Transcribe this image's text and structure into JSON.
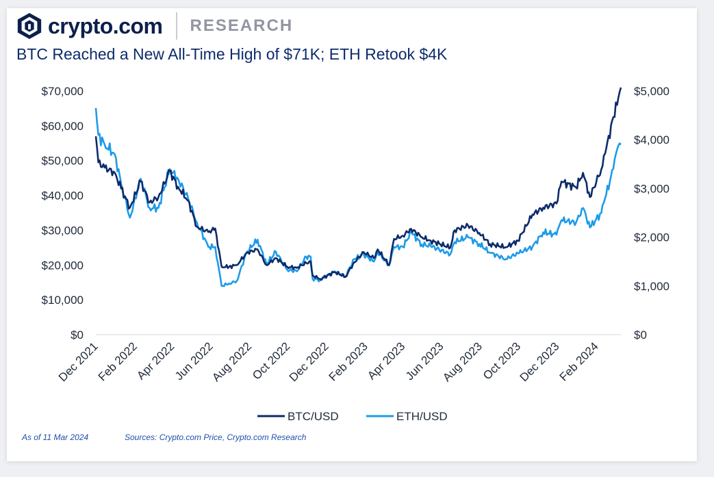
{
  "brand": {
    "name": "crypto.com",
    "section": "RESEARCH"
  },
  "title": "BTC Reached a New All-Time High of $71K; ETH Retook $4K",
  "footer": {
    "as_of": "As of 11 Mar 2024",
    "sources": "Sources: Crypto.com Price, Crypto.com Research"
  },
  "colors": {
    "btc": "#0d2b6b",
    "eth": "#1e9be9",
    "brand": "#0d1f4c"
  },
  "chart_data": {
    "type": "line",
    "title": "BTC Reached a New All-Time High of $71K; ETH Retook $4K",
    "x_start": "2021-12-01",
    "x_end": "2024-03-11",
    "x_tick_labels": [
      "Dec 2021",
      "Feb 2022",
      "Apr 2022",
      "Jun 2022",
      "Aug 2022",
      "Oct 2022",
      "Dec 2022",
      "Feb 2023",
      "Apr 2023",
      "Jun 2023",
      "Aug 2023",
      "Oct 2023",
      "Dec 2023",
      "Feb 2024"
    ],
    "x_tick_dates": [
      "2021-12-01",
      "2022-02-01",
      "2022-04-01",
      "2022-06-01",
      "2022-08-01",
      "2022-10-01",
      "2022-12-01",
      "2023-02-01",
      "2023-04-01",
      "2023-06-01",
      "2023-08-01",
      "2023-10-01",
      "2023-12-01",
      "2024-02-01"
    ],
    "y_left": {
      "min": 0,
      "max": 70000,
      "ticks": [
        0,
        10000,
        20000,
        30000,
        40000,
        50000,
        60000,
        70000
      ],
      "tick_labels": [
        "$0",
        "$10,000",
        "$20,000",
        "$30,000",
        "$40,000",
        "$50,000",
        "$60,000",
        "$70,000"
      ]
    },
    "y_right": {
      "min": 0,
      "max": 5000,
      "ticks": [
        0,
        1000,
        2000,
        3000,
        4000,
        5000
      ],
      "tick_labels": [
        "$0",
        "$1,000",
        "$2,000",
        "$3,000",
        "$4,000",
        "$5,000"
      ]
    },
    "legend": {
      "position": "bottom-center"
    },
    "series": [
      {
        "name": "BTC/USD",
        "axis": "left",
        "color": "#0d2b6b",
        "points": [
          [
            "2021-12-01",
            57000
          ],
          [
            "2021-12-05",
            49500
          ],
          [
            "2021-12-15",
            48000
          ],
          [
            "2021-12-31",
            46500
          ],
          [
            "2022-01-10",
            42000
          ],
          [
            "2022-01-24",
            36500
          ],
          [
            "2022-02-10",
            44000
          ],
          [
            "2022-02-24",
            38000
          ],
          [
            "2022-03-10",
            39500
          ],
          [
            "2022-03-28",
            47000
          ],
          [
            "2022-04-10",
            42500
          ],
          [
            "2022-04-26",
            38500
          ],
          [
            "2022-05-10",
            31000
          ],
          [
            "2022-05-28",
            29500
          ],
          [
            "2022-06-08",
            30500
          ],
          [
            "2022-06-18",
            19500
          ],
          [
            "2022-06-30",
            19500
          ],
          [
            "2022-07-12",
            20000
          ],
          [
            "2022-07-28",
            23500
          ],
          [
            "2022-08-14",
            24500
          ],
          [
            "2022-08-28",
            20000
          ],
          [
            "2022-09-12",
            22000
          ],
          [
            "2022-09-30",
            19500
          ],
          [
            "2022-10-15",
            19200
          ],
          [
            "2022-10-30",
            20600
          ],
          [
            "2022-11-06",
            21000
          ],
          [
            "2022-11-09",
            17000
          ],
          [
            "2022-11-21",
            16000
          ],
          [
            "2022-12-14",
            18000
          ],
          [
            "2022-12-31",
            16600
          ],
          [
            "2023-01-14",
            20800
          ],
          [
            "2023-01-29",
            23700
          ],
          [
            "2023-02-14",
            22000
          ],
          [
            "2023-02-20",
            24500
          ],
          [
            "2023-03-10",
            20000
          ],
          [
            "2023-03-18",
            27500
          ],
          [
            "2023-04-01",
            28400
          ],
          [
            "2023-04-14",
            30400
          ],
          [
            "2023-05-01",
            28000
          ],
          [
            "2023-05-15",
            27000
          ],
          [
            "2023-06-15",
            25000
          ],
          [
            "2023-06-22",
            30000
          ],
          [
            "2023-07-13",
            31400
          ],
          [
            "2023-07-31",
            29200
          ],
          [
            "2023-08-17",
            26000
          ],
          [
            "2023-09-11",
            25100
          ],
          [
            "2023-09-30",
            27000
          ],
          [
            "2023-10-23",
            34500
          ],
          [
            "2023-11-09",
            36500
          ],
          [
            "2023-11-30",
            37700
          ],
          [
            "2023-12-08",
            44000
          ],
          [
            "2023-12-31",
            42300
          ],
          [
            "2024-01-11",
            46500
          ],
          [
            "2024-01-22",
            39500
          ],
          [
            "2024-02-09",
            47500
          ],
          [
            "2024-02-15",
            52000
          ],
          [
            "2024-02-28",
            62500
          ],
          [
            "2024-03-05",
            66000
          ],
          [
            "2024-03-11",
            71000
          ]
        ]
      },
      {
        "name": "ETH/USD",
        "axis": "right",
        "color": "#1e9be9",
        "points": [
          [
            "2021-12-01",
            4650
          ],
          [
            "2021-12-05",
            4100
          ],
          [
            "2021-12-15",
            3900
          ],
          [
            "2021-12-31",
            3700
          ],
          [
            "2022-01-10",
            3100
          ],
          [
            "2022-01-24",
            2400
          ],
          [
            "2022-02-10",
            3200
          ],
          [
            "2022-02-24",
            2600
          ],
          [
            "2022-03-10",
            2600
          ],
          [
            "2022-03-28",
            3400
          ],
          [
            "2022-04-10",
            3200
          ],
          [
            "2022-04-26",
            2800
          ],
          [
            "2022-05-10",
            2300
          ],
          [
            "2022-05-28",
            1800
          ],
          [
            "2022-06-08",
            1800
          ],
          [
            "2022-06-18",
            1000
          ],
          [
            "2022-06-30",
            1050
          ],
          [
            "2022-07-12",
            1100
          ],
          [
            "2022-07-28",
            1700
          ],
          [
            "2022-08-14",
            1950
          ],
          [
            "2022-08-28",
            1450
          ],
          [
            "2022-09-12",
            1700
          ],
          [
            "2022-09-30",
            1330
          ],
          [
            "2022-10-15",
            1300
          ],
          [
            "2022-10-30",
            1600
          ],
          [
            "2022-11-06",
            1600
          ],
          [
            "2022-11-09",
            1150
          ],
          [
            "2022-11-21",
            1120
          ],
          [
            "2022-12-14",
            1300
          ],
          [
            "2022-12-31",
            1200
          ],
          [
            "2023-01-14",
            1550
          ],
          [
            "2023-01-29",
            1650
          ],
          [
            "2023-02-14",
            1500
          ],
          [
            "2023-02-20",
            1700
          ],
          [
            "2023-03-10",
            1420
          ],
          [
            "2023-03-18",
            1800
          ],
          [
            "2023-04-01",
            1800
          ],
          [
            "2023-04-14",
            2100
          ],
          [
            "2023-05-01",
            1850
          ],
          [
            "2023-05-15",
            1820
          ],
          [
            "2023-06-15",
            1650
          ],
          [
            "2023-06-22",
            1900
          ],
          [
            "2023-07-13",
            2000
          ],
          [
            "2023-07-31",
            1860
          ],
          [
            "2023-08-17",
            1680
          ],
          [
            "2023-09-11",
            1550
          ],
          [
            "2023-09-30",
            1670
          ],
          [
            "2023-10-23",
            1800
          ],
          [
            "2023-11-09",
            2100
          ],
          [
            "2023-11-30",
            2050
          ],
          [
            "2023-12-08",
            2350
          ],
          [
            "2023-12-31",
            2300
          ],
          [
            "2024-01-11",
            2600
          ],
          [
            "2024-01-22",
            2200
          ],
          [
            "2024-02-09",
            2500
          ],
          [
            "2024-02-15",
            2800
          ],
          [
            "2024-02-28",
            3400
          ],
          [
            "2024-03-05",
            3800
          ],
          [
            "2024-03-11",
            3900
          ]
        ]
      }
    ]
  }
}
